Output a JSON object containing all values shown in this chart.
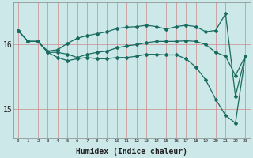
{
  "xlabel": "Humidex (Indice chaleur)",
  "ylabel": "",
  "background_color": "#cce8e8",
  "line_color": "#1a6b60",
  "x_values": [
    0,
    1,
    2,
    3,
    4,
    5,
    6,
    7,
    8,
    9,
    10,
    11,
    12,
    13,
    14,
    15,
    16,
    17,
    18,
    19,
    20,
    21,
    22,
    23
  ],
  "line1": [
    16.22,
    16.05,
    16.05,
    15.9,
    15.92,
    16.02,
    16.1,
    16.14,
    16.17,
    16.2,
    16.25,
    16.27,
    16.28,
    16.3,
    16.28,
    16.24,
    16.28,
    16.3,
    16.28,
    16.2,
    16.22,
    16.48,
    15.2,
    15.82
  ],
  "line2": [
    16.22,
    16.05,
    16.05,
    15.88,
    15.88,
    15.85,
    15.8,
    15.85,
    15.88,
    15.9,
    15.95,
    15.98,
    16.0,
    16.03,
    16.05,
    16.05,
    16.05,
    16.06,
    16.05,
    16.0,
    15.88,
    15.82,
    15.52,
    15.82
  ],
  "line3": [
    16.22,
    16.05,
    16.05,
    15.88,
    15.8,
    15.75,
    15.78,
    15.8,
    15.78,
    15.78,
    15.8,
    15.8,
    15.82,
    15.85,
    15.85,
    15.84,
    15.84,
    15.78,
    15.65,
    15.45,
    15.15,
    14.9,
    14.78,
    15.82
  ],
  "yticks": [
    15,
    16
  ],
  "ylim": [
    14.55,
    16.65
  ],
  "xlim": [
    -0.5,
    23.5
  ]
}
